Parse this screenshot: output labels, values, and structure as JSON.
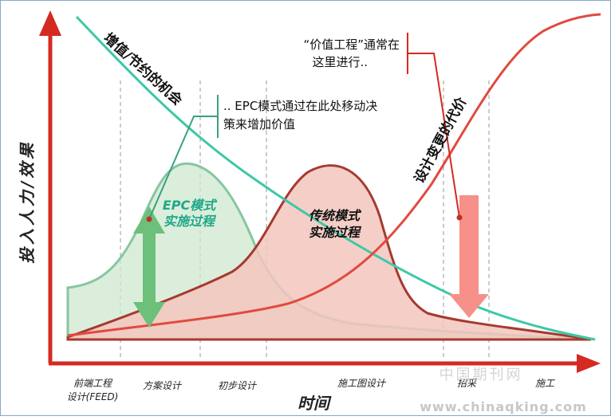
{
  "y_axis_label": "投入人力/效果",
  "x_axis_label": "时间",
  "phases": [
    {
      "line1": "前端工程",
      "line2": "设计(FEED)"
    },
    {
      "line1": "方案设计",
      "line2": ""
    },
    {
      "line1": "初步设计",
      "line2": ""
    },
    {
      "line1": "施工图设计",
      "line2": ""
    },
    {
      "line1": "招采",
      "line2": ""
    },
    {
      "line1": "施工",
      "line2": ""
    }
  ],
  "curve_labels": {
    "savings": "增值/节约的机会",
    "change_cost": "设计变更的代价",
    "epc": [
      "EPC模式",
      "实施过程"
    ],
    "traditional": [
      "传统模式",
      "实施过程"
    ]
  },
  "annotations": {
    "epc_note": [
      ".. EPC模式通过在此处移动决",
      "策来增加价值"
    ],
    "value_eng": [
      "“价值工程”通常在",
      "这里进行.."
    ]
  },
  "watermark": {
    "cn": "中国期刊网",
    "url": "www.chinaqking.com"
  },
  "colors": {
    "axis": "#d42a22",
    "teal": "#3cc8a8",
    "red_curve": "#e04a40",
    "epc_fill": "#c8e6c8",
    "epc_stroke": "#7fc89a",
    "trad_fill": "#f4c7c0",
    "trad_stroke": "#a33a30",
    "green_arrow": "#6cc07a",
    "pink_arrow": "#f69089"
  }
}
